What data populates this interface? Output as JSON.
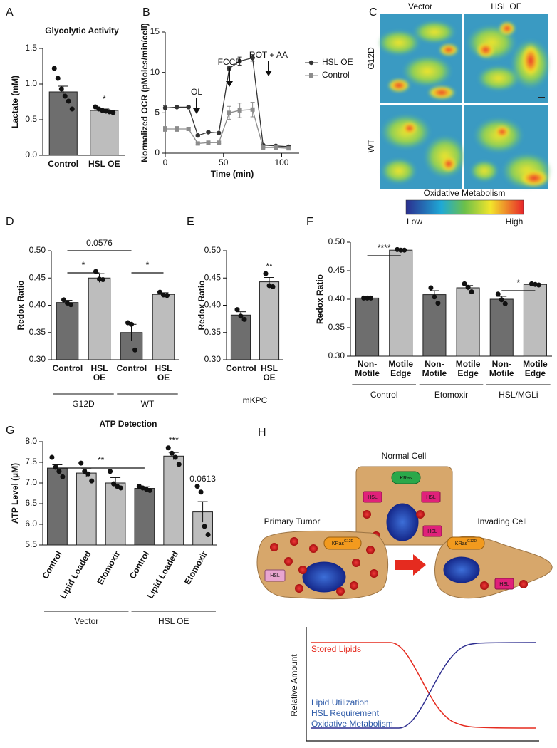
{
  "chart_data": [
    {
      "type": "bar",
      "panel": "A",
      "title": "Glycolytic Activity",
      "ylabel": "Lactate (mM)",
      "categories": [
        "Control",
        "HSL OE"
      ],
      "values": [
        0.89,
        0.63
      ],
      "errors": [
        0.08,
        0.02
      ],
      "points": [
        [
          1.22,
          1.08,
          0.93,
          0.83,
          0.76,
          0.65
        ],
        [
          0.68,
          0.65,
          0.63,
          0.62,
          0.61,
          0.6
        ]
      ],
      "colors": [
        "#6e6e6e",
        "#bdbdbd"
      ],
      "ylim": [
        0,
        1.5
      ],
      "yticks": [
        {
          "value": 0,
          "label": "0.0"
        },
        {
          "value": 0.5,
          "label": "0.5"
        },
        {
          "value": 1,
          "label": "1.0"
        },
        {
          "value": 1.5,
          "label": "1.5"
        }
      ],
      "annotations": [
        "*"
      ]
    },
    {
      "type": "line",
      "panel": "B",
      "xlabel": "Time (min)",
      "ylabel": "Normalized OCR (pMoles/min/cell)",
      "x": [
        0,
        10,
        20,
        28,
        37,
        46,
        55,
        64,
        75,
        84,
        95,
        106
      ],
      "series": [
        {
          "name": "HSL OE",
          "color": "#333333",
          "marker": "circle",
          "values": [
            5.6,
            5.7,
            5.7,
            2.2,
            2.6,
            2.5,
            10.5,
            11.4,
            11.8,
            1.0,
            0.9,
            0.8
          ],
          "errors": [
            0.25,
            0.1,
            0.1,
            0.1,
            0.1,
            0.1,
            0.2,
            0.5,
            0.4,
            0.1,
            0.1,
            0.1
          ]
        },
        {
          "name": "Control",
          "color": "#8c8c8c",
          "marker": "square",
          "values": [
            3.0,
            3.0,
            3.0,
            1.2,
            1.3,
            1.3,
            5.0,
            5.3,
            5.4,
            0.7,
            0.7,
            0.6
          ],
          "errors": [
            0.3,
            0.3,
            0.2,
            0.1,
            0.1,
            0.1,
            0.8,
            0.9,
            0.9,
            0.1,
            0.1,
            0.1
          ]
        }
      ],
      "xlim": [
        0,
        115
      ],
      "xticks": [
        0,
        50,
        100
      ],
      "ylim": [
        0,
        15
      ],
      "yticks": [
        0,
        5,
        10,
        15
      ],
      "annotations": [
        "OL",
        "FCCP",
        "ROT + AA"
      ],
      "legend": "upper right"
    },
    {
      "type": "bar",
      "panel": "D",
      "ylabel": "Redox Ratio",
      "categories": [
        "Control",
        "HSL OE",
        "Control",
        "HSL OE"
      ],
      "group_labels": [
        "G12D",
        "WT"
      ],
      "values": [
        0.405,
        0.45,
        0.35,
        0.42
      ],
      "errors": [
        0.004,
        0.008,
        0.015,
        0.003
      ],
      "points": [
        [
          0.41,
          0.404,
          0.401
        ],
        [
          0.462,
          0.448,
          0.447
        ],
        [
          0.368,
          0.365,
          0.318
        ],
        [
          0.424,
          0.419,
          0.418
        ]
      ],
      "colors": [
        "#6e6e6e",
        "#bdbdbd",
        "#6e6e6e",
        "#bdbdbd"
      ],
      "ylim": [
        0.3,
        0.5
      ],
      "yticks": [
        {
          "value": 0.3,
          "label": "0.30"
        },
        {
          "value": 0.35,
          "label": "0.35"
        },
        {
          "value": 0.4,
          "label": "0.40"
        },
        {
          "value": 0.45,
          "label": "0.45"
        },
        {
          "value": 0.5,
          "label": "0.50"
        }
      ],
      "annotations": [
        "*",
        "*",
        "0.0576"
      ]
    },
    {
      "type": "bar",
      "panel": "E",
      "ylabel": "Redox Ratio",
      "categories": [
        "Control",
        "HSL OE"
      ],
      "group_labels": [
        "mKPC"
      ],
      "values": [
        0.382,
        0.443
      ],
      "errors": [
        0.006,
        0.008
      ],
      "points": [
        [
          0.392,
          0.38,
          0.374
        ],
        [
          0.458,
          0.436,
          0.434
        ]
      ],
      "colors": [
        "#6e6e6e",
        "#bdbdbd"
      ],
      "ylim": [
        0.3,
        0.5
      ],
      "yticks": [
        {
          "value": 0.3,
          "label": "0.30"
        },
        {
          "value": 0.35,
          "label": "0.35"
        },
        {
          "value": 0.4,
          "label": "0.40"
        },
        {
          "value": 0.45,
          "label": "0.45"
        },
        {
          "value": 0.5,
          "label": "0.50"
        }
      ],
      "annotations": [
        "**"
      ]
    },
    {
      "type": "bar",
      "panel": "F",
      "ylabel": "Redox Ratio",
      "categories": [
        "Non-Motile",
        "Motile Edge",
        "Non-Motile",
        "Motile Edge",
        "Non-Motile",
        "Motile Edge"
      ],
      "group_labels": [
        "Control",
        "Etomoxir",
        "HSL/MGLi"
      ],
      "values": [
        0.402,
        0.486,
        0.408,
        0.42,
        0.4,
        0.426
      ],
      "errors": [
        0.001,
        0.001,
        0.007,
        0.004,
        0.005,
        0.001
      ],
      "points": [
        [
          0.402,
          0.402,
          0.402
        ],
        [
          0.487,
          0.486,
          0.486
        ],
        [
          0.42,
          0.404,
          0.393
        ],
        [
          0.427,
          0.421,
          0.413
        ],
        [
          0.409,
          0.399,
          0.392
        ],
        [
          0.427,
          0.426,
          0.425
        ]
      ],
      "colors": [
        "#6e6e6e",
        "#bdbdbd",
        "#6e6e6e",
        "#bdbdbd",
        "#6e6e6e",
        "#bdbdbd"
      ],
      "ylim": [
        0.3,
        0.5
      ],
      "yticks": [
        {
          "value": 0.3,
          "label": "0.30"
        },
        {
          "value": 0.35,
          "label": "0.35"
        },
        {
          "value": 0.4,
          "label": "0.40"
        },
        {
          "value": 0.45,
          "label": "0.45"
        },
        {
          "value": 0.5,
          "label": "0.50"
        }
      ],
      "annotations": [
        "****",
        "*"
      ]
    },
    {
      "type": "bar",
      "panel": "G",
      "title": "ATP Detection",
      "ylabel": "ATP Level (µM)",
      "categories": [
        "Control",
        "Lipid Loaded",
        "Etomoxir",
        "Control",
        "Lipid Loaded",
        "Etomoxir"
      ],
      "group_labels": [
        "Vector",
        "HSL OE"
      ],
      "values": [
        7.36,
        7.24,
        7.0,
        6.87,
        7.65,
        6.3
      ],
      "errors": [
        0.08,
        0.1,
        0.13,
        0.04,
        0.09,
        0.25
      ],
      "points": [
        [
          7.62,
          7.38,
          7.28,
          7.15
        ],
        [
          7.48,
          7.28,
          7.22,
          7.05
        ],
        [
          7.28,
          6.98,
          6.92,
          6.88
        ],
        [
          6.92,
          6.88,
          6.85,
          6.82
        ],
        [
          7.85,
          7.72,
          7.62,
          7.45
        ],
        [
          6.92,
          6.78,
          5.95,
          5.75
        ]
      ],
      "colors": [
        "#6e6e6e",
        "#bdbdbd",
        "#bdbdbd",
        "#6e6e6e",
        "#bdbdbd",
        "#bdbdbd"
      ],
      "ylim": [
        5.5,
        8.0
      ],
      "yticks": [
        5.5,
        {
          "value": 6,
          "label": "6.0"
        },
        6.5,
        {
          "value": 7,
          "label": "7.0"
        },
        7.5,
        {
          "value": 8,
          "label": "8.0"
        }
      ],
      "annotations": [
        "**",
        "***",
        "0.0613"
      ]
    }
  ],
  "imaging": {
    "panel": "C",
    "columns": [
      "Vector",
      "HSL OE"
    ],
    "rows": [
      "G12D",
      "WT"
    ],
    "colorbar_label": "Oxidative Metabolism",
    "low": "Low",
    "high": "High"
  },
  "diagram": {
    "panel": "H",
    "normal": {
      "title": "Normal Cell",
      "kras": "KRas",
      "hsl": [
        "HSL",
        "HSL",
        "HSL"
      ]
    },
    "tumor": {
      "title": "Primary Tumor",
      "kras": "KRas",
      "kras_sup": "G12D",
      "hsl": "HSL"
    },
    "invading": {
      "title": "Invading Cell",
      "kras": "KRas",
      "kras_sup": "G12D",
      "hsl": "HSL"
    },
    "plot": {
      "ylabel": "Relative Amount",
      "red_label": "Stored Lipids",
      "blue_labels": [
        "Lipid Utilization",
        "HSL Requirement",
        "Oxidative Metabolism"
      ]
    }
  }
}
